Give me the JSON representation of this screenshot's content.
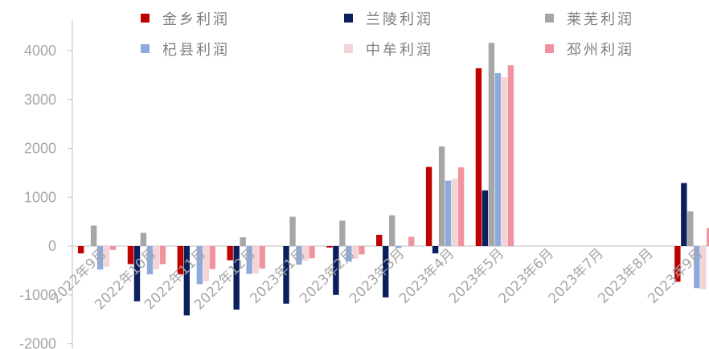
{
  "chart_data": {
    "type": "bar",
    "title": "",
    "xlabel": "",
    "ylabel": "",
    "ylim": [
      -2000,
      4500
    ],
    "yticks": [
      -2000,
      -1000,
      0,
      1000,
      2000,
      3000,
      4000
    ],
    "grid": false,
    "legend_position": "top",
    "categories": [
      "2022年9月",
      "2022年10月",
      "2022年11月",
      "2022年12月",
      "2023年1月",
      "2023年2月",
      "2023年3月",
      "2023年4月",
      "2023年5月",
      "2023年6月",
      "2023年7月",
      "2023年8月",
      "2023年9月"
    ],
    "series": [
      {
        "name": "金乡利润",
        "color": "#c00000",
        "values": [
          -150,
          -370,
          -580,
          -290,
          0,
          -30,
          230,
          1620,
          3640,
          null,
          null,
          null,
          -730
        ]
      },
      {
        "name": "兰陵利润",
        "color": "#0b1f5c",
        "values": [
          0,
          -1130,
          -1420,
          -1300,
          -1180,
          -1000,
          -1050,
          -150,
          1140,
          null,
          null,
          null,
          1290
        ]
      },
      {
        "name": "莱芜利润",
        "color": "#a6a6a6",
        "values": [
          420,
          270,
          0,
          180,
          600,
          520,
          630,
          2040,
          4160,
          null,
          null,
          null,
          710
        ]
      },
      {
        "name": "杞县利润",
        "color": "#8eaadb",
        "values": [
          -480,
          -580,
          -780,
          -570,
          -380,
          -320,
          -40,
          1340,
          3540,
          null,
          null,
          null,
          -860
        ]
      },
      {
        "name": "中牟利润",
        "color": "#f4d4d7",
        "values": [
          -420,
          -480,
          -720,
          -560,
          -300,
          -260,
          0,
          1380,
          3460,
          null,
          null,
          null,
          -890
        ]
      },
      {
        "name": "邳州利润",
        "color": "#f0939f",
        "values": [
          -80,
          -370,
          -470,
          -460,
          -250,
          -170,
          190,
          1610,
          3700,
          null,
          null,
          null,
          370
        ]
      }
    ]
  }
}
